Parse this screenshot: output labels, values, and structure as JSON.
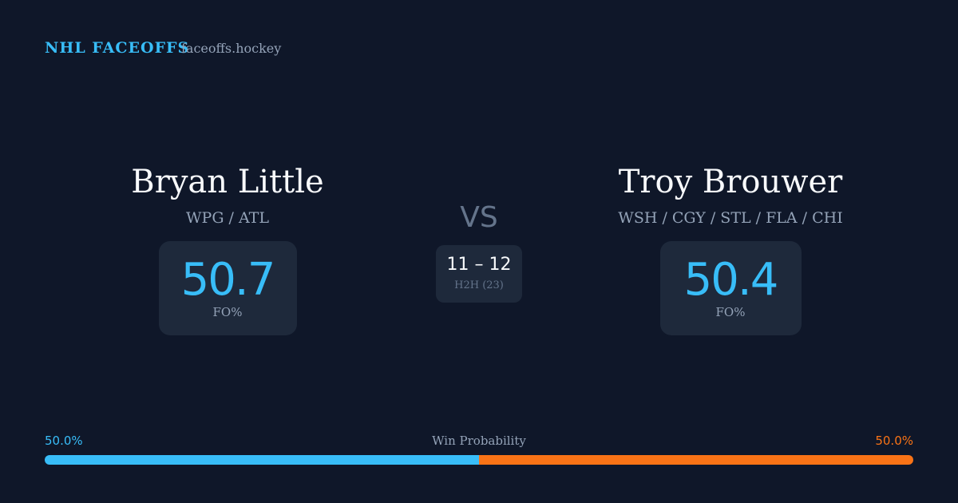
{
  "header": {
    "brand": "NHL FACEOFFS",
    "site": "faceoffs.hockey"
  },
  "players": [
    {
      "name": "Bryan Little",
      "teams": "WPG / ATL",
      "stat": "50.7",
      "stat_label": "FO%"
    },
    {
      "name": "Troy Brouwer",
      "teams": "WSH / CGY / STL / FLA / CHI",
      "stat": "50.4",
      "stat_label": "FO%"
    }
  ],
  "vs": "VS",
  "h2h": {
    "score": "11 – 12",
    "label": "H2H (23)"
  },
  "win_probability": {
    "label": "Win Probability",
    "left": {
      "value": 50.0,
      "label": "50.0%",
      "color": "#38bdf8"
    },
    "right": {
      "value": 50.0,
      "label": "50.0%",
      "color": "#f97316"
    }
  }
}
